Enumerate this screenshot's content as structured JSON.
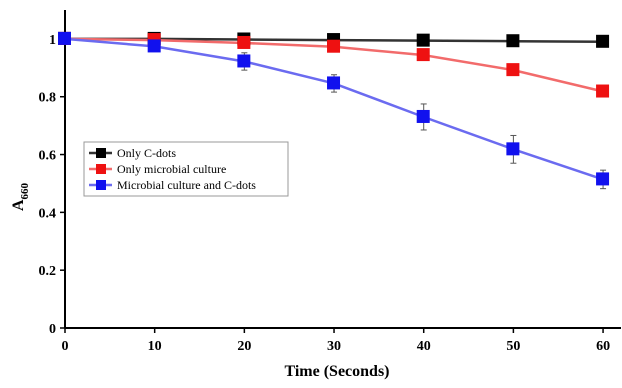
{
  "chart_data": {
    "type": "line",
    "xlabel": "Time (Seconds)",
    "ylabel": "A",
    "ylabel_sub": "660",
    "xlim": [
      0,
      62
    ],
    "ylim": [
      0,
      1.1
    ],
    "x_ticks": [
      0,
      10,
      20,
      30,
      40,
      50,
      60
    ],
    "x_tick_labels": [
      "0",
      "10",
      "20",
      "30",
      "40",
      "50",
      "60"
    ],
    "y_ticks": [
      0,
      0.2,
      0.4,
      0.6,
      0.8,
      1
    ],
    "y_tick_labels": [
      "0",
      "0.2",
      "0.4",
      "0.6",
      "0.8",
      "1"
    ],
    "grid": false,
    "legend_position": "center-left",
    "x": [
      0,
      10,
      20,
      30,
      40,
      50,
      60
    ],
    "series": [
      {
        "name": "Only C-dots",
        "color": "#333333",
        "marker_color": "#000000",
        "values": [
          1.0,
          1.0,
          0.998,
          0.996,
          0.994,
          0.992,
          0.99
        ],
        "errors": [
          0,
          0,
          0,
          0,
          0,
          0,
          0
        ]
      },
      {
        "name": "Only microbial culture",
        "color": "#f26b6b",
        "marker_color": "#ee1111",
        "values": [
          1.0,
          0.996,
          0.986,
          0.973,
          0.944,
          0.892,
          0.818
        ],
        "errors": [
          0,
          0,
          0,
          0,
          0,
          0,
          0
        ]
      },
      {
        "name": "Microbial culture and C-dots",
        "color": "#6b6bf0",
        "marker_color": "#1111ee",
        "values": [
          1.0,
          0.974,
          0.922,
          0.846,
          0.73,
          0.618,
          0.514
        ],
        "errors": [
          0,
          0.01,
          0.03,
          0.03,
          0.045,
          0.048,
          0.032
        ]
      }
    ]
  }
}
